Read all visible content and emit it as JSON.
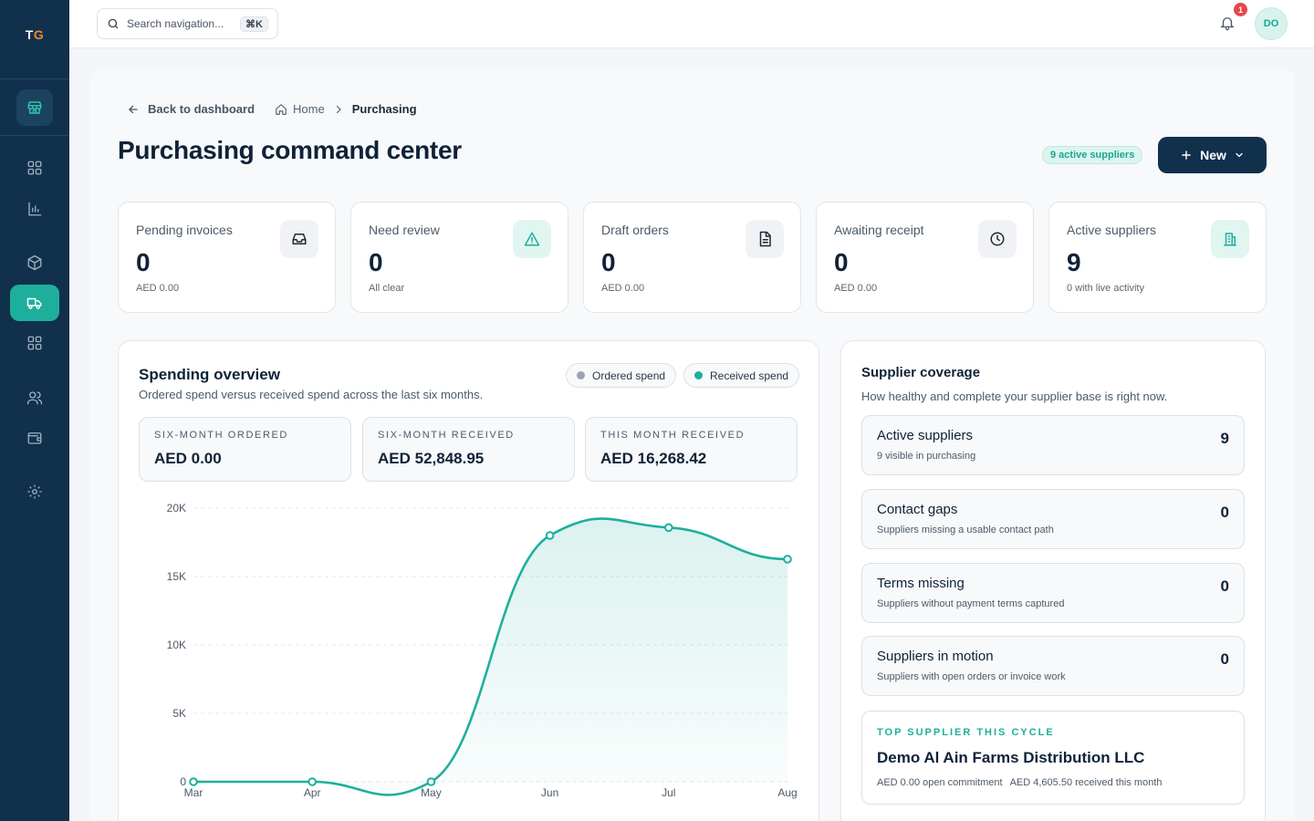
{
  "brand": {
    "letter1": "T",
    "letter2": "G",
    "accent": "#f08a2b"
  },
  "colors": {
    "sidebar": "#11304c",
    "accent": "#1eaf9c",
    "navy": "#11304c",
    "alert": "#e5484d"
  },
  "sidebar": {
    "items": [
      {
        "name": "store-icon"
      },
      {
        "name": "dashboard-grid-icon"
      },
      {
        "name": "bar-chart-icon"
      },
      {
        "name": "box-icon"
      },
      {
        "name": "truck-icon",
        "active": true
      },
      {
        "name": "apps-grid-icon"
      },
      {
        "name": "users-icon"
      },
      {
        "name": "wallet-icon"
      },
      {
        "name": "gear-icon"
      }
    ]
  },
  "topbar": {
    "search_placeholder": "Search navigation...",
    "shortcut": "⌘K",
    "notification_count": "1",
    "avatar_initials": "DO"
  },
  "breadcrumb": {
    "back": "Back to dashboard",
    "home": "Home",
    "current": "Purchasing"
  },
  "page": {
    "title": "Purchasing command center",
    "active_suppliers_pill": "9 active suppliers",
    "new_button": "New"
  },
  "stats": [
    {
      "label": "Pending invoices",
      "value": "0",
      "sub": "AED 0.00",
      "icon": "inbox-icon"
    },
    {
      "label": "Need review",
      "value": "0",
      "sub": "All clear",
      "icon": "warning-icon"
    },
    {
      "label": "Draft orders",
      "value": "0",
      "sub": "AED 0.00",
      "icon": "document-icon"
    },
    {
      "label": "Awaiting receipt",
      "value": "0",
      "sub": "AED 0.00",
      "icon": "clock-icon"
    },
    {
      "label": "Active suppliers",
      "value": "9",
      "sub": "0 with live activity",
      "icon": "building-icon"
    }
  ],
  "spending": {
    "title": "Spending overview",
    "subtitle": "Ordered spend versus received spend across the last six months.",
    "legend_ordered": "Ordered spend",
    "legend_received": "Received spend",
    "kpis": [
      {
        "label": "SIX-MONTH ORDERED",
        "value": "AED 0.00"
      },
      {
        "label": "SIX-MONTH RECEIVED",
        "value": "AED 52,848.95"
      },
      {
        "label": "THIS MONTH RECEIVED",
        "value": "AED 16,268.42"
      }
    ]
  },
  "chart_data": {
    "type": "area",
    "categories": [
      "Mar",
      "Apr",
      "May",
      "Jun",
      "Jul",
      "Aug"
    ],
    "series": [
      {
        "name": "Received spend",
        "color": "#1eaf9c",
        "values": [
          0,
          0,
          0,
          18000,
          18580,
          16268
        ]
      },
      {
        "name": "Ordered spend",
        "color": "#9aa4b1",
        "values": [
          0,
          0,
          0,
          0,
          0,
          0
        ]
      }
    ],
    "yticks": [
      "20K",
      "15K",
      "10K",
      "5K",
      "0"
    ],
    "ytick_values": [
      20000,
      15000,
      10000,
      5000,
      0
    ],
    "ylim": [
      0,
      20000
    ],
    "grid": true
  },
  "suppliers": {
    "title": "Supplier coverage",
    "subtitle": "How healthy and complete your supplier base is right now.",
    "items": [
      {
        "title": "Active suppliers",
        "sub": "9 visible in purchasing",
        "value": "9"
      },
      {
        "title": "Contact gaps",
        "sub": "Suppliers missing a usable contact path",
        "value": "0"
      },
      {
        "title": "Terms missing",
        "sub": "Suppliers without payment terms captured",
        "value": "0"
      },
      {
        "title": "Suppliers in motion",
        "sub": "Suppliers with open orders or invoice work",
        "value": "0"
      }
    ],
    "top": {
      "kicker": "TOP SUPPLIER THIS CYCLE",
      "name": "Demo Al Ain Farms Distribution LLC",
      "commitment": "AED 0.00 open commitment",
      "received": "AED 4,605.50 received this month"
    }
  }
}
